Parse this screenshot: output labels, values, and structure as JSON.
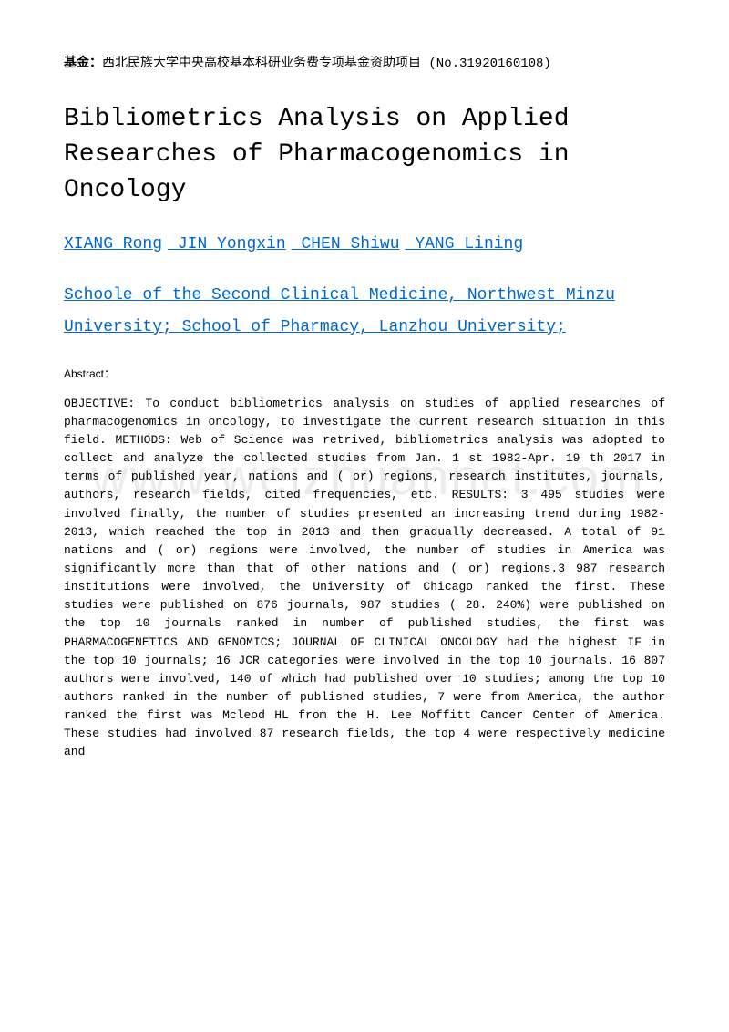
{
  "funding": {
    "label": "基金：",
    "text": "西北民族大学中央高校基本科研业务费专项基金资助项目 (No.31920160108)"
  },
  "title": "Bibliometrics Analysis on Applied Researches of Pharmacogenomics in Oncology",
  "authors": [
    "XIANG Rong",
    "JIN Yongxin",
    "CHEN Shiwu",
    "YANG Lining"
  ],
  "affiliations": "Schoole of the Second Clinical Medicine, Northwest Minzu University; School of Pharmacy, Lanzhou University;",
  "abstract_label": "Abstract：",
  "abstract_text": "OBJECTIVE: To conduct bibliometrics analysis on studies of applied researches of pharmacogenomics in oncology, to investigate the current research situation in this field. METHODS: Web of Science was retrived, bibliometrics analysis was adopted to collect and analyze the collected studies from Jan. 1 st 1982-Apr. 19 th 2017 in terms of published year, nations and ( or) regions, research institutes, journals, authors, research fields, cited frequencies, etc. RESULTS: 3 495 studies were involved finally, the number of studies presented an increasing trend during 1982-2013, which reached the top in 2013 and then gradually decreased. A total of 91 nations and ( or) regions were involved, the number of studies in America was significantly more than that of other nations and ( or) regions.3 987 research institutions were involved, the University of Chicago ranked the first. These studies were published on 876 journals, 987 studies ( 28. 240%) were published on the top 10 journals ranked in number of published studies, the first was PHARMACOGENETICS AND GENOMICS; JOURNAL OF CLINICAL ONCOLOGY had the highest IF in the top 10 journals; 16 JCR categories were involved in the top 10 journals. 16 807 authors were involved, 140 of which had published over 10 studies; among the top 10 authors ranked in the number of published studies, 7 were from America, the author ranked the first was Mcleod HL from the H. Lee Moffitt Cancer Center of America. These studies had involved 87 research fields, the top 4 were respectively medicine and",
  "watermark": "www.weizhuannet.com",
  "colors": {
    "link_color": "#0066cc",
    "text_color": "#000000",
    "background_color": "#ffffff",
    "watermark_color": "rgba(200, 200, 200, 0.35)"
  },
  "typography": {
    "body_font": "Courier New",
    "title_fontsize": 28,
    "authors_fontsize": 18,
    "funding_fontsize": 14,
    "abstract_fontsize": 13,
    "abstract_label_fontsize": 12
  }
}
